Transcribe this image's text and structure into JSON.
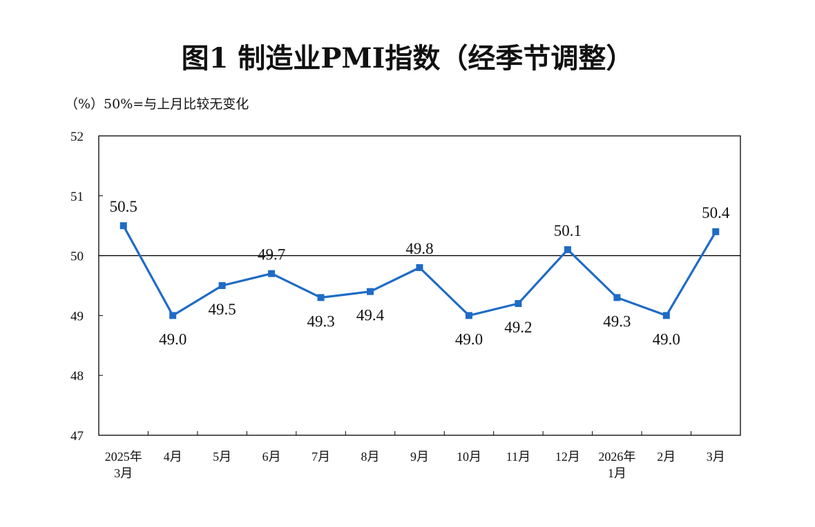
{
  "title": "图1  制造业PMI指数（经季节调整）",
  "unit_note": "（%）50%=与上月比较无变化",
  "colors": {
    "series": "#1f6bc6",
    "axis": "#000000"
  },
  "chart_data": {
    "type": "line",
    "categories": [
      [
        "2025年",
        "3月"
      ],
      [
        "4月"
      ],
      [
        "5月"
      ],
      [
        "6月"
      ],
      [
        "7月"
      ],
      [
        "8月"
      ],
      [
        "9月"
      ],
      [
        "10月"
      ],
      [
        "11月"
      ],
      [
        "12月"
      ],
      [
        "2026年",
        "1月"
      ],
      [
        "2月"
      ],
      [
        "3月"
      ]
    ],
    "values": [
      50.5,
      49.0,
      49.5,
      49.7,
      49.3,
      49.4,
      49.8,
      49.0,
      49.2,
      50.1,
      49.3,
      49.0,
      50.4
    ],
    "data_labels": [
      "50.5",
      "49.0",
      "49.5",
      "49.7",
      "49.3",
      "49.4",
      "49.8",
      "49.0",
      "49.2",
      "50.1",
      "49.3",
      "49.0",
      "50.4"
    ],
    "ylim": [
      47,
      52
    ],
    "yticks": [
      "47",
      "48",
      "49",
      "50",
      "51",
      "52"
    ],
    "reference_line": 50,
    "grid": false,
    "legend": "none"
  }
}
